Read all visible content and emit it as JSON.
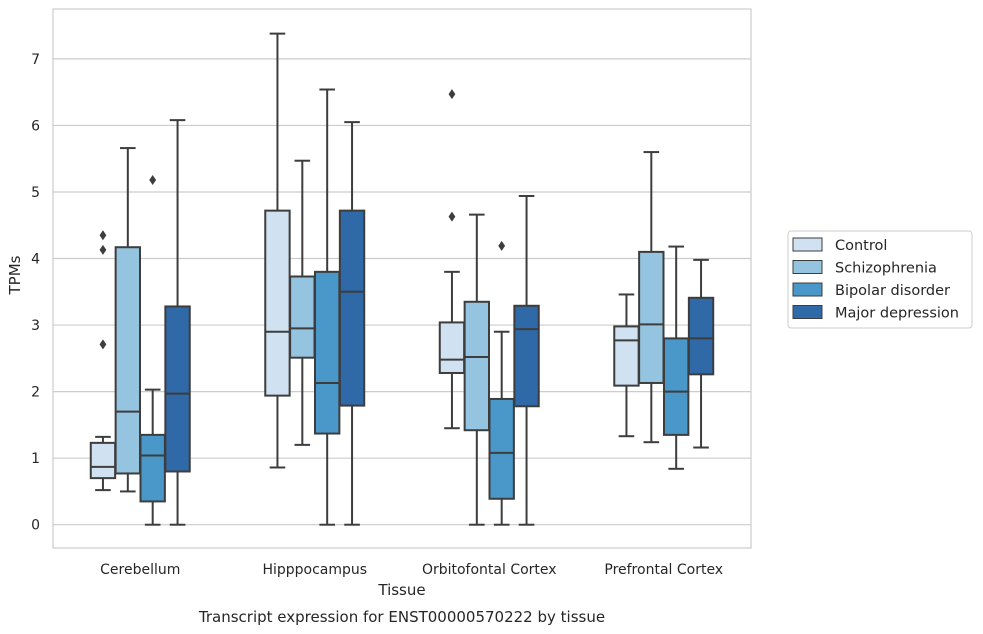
{
  "chart_data": {
    "type": "boxplot",
    "title": "",
    "caption": "Transcript expression for ENST00000570222 by tissue",
    "xlabel": "Tissue",
    "ylabel": "TPMs",
    "ylim": [
      -0.35,
      7.75
    ],
    "yticks": [
      0,
      1,
      2,
      3,
      4,
      5,
      6,
      7
    ],
    "grid": "horizontal",
    "legend_position": "right",
    "categories": [
      "Cerebellum",
      "Hipppocampus",
      "Orbitofontal Cortex",
      "Prefrontal Cortex"
    ],
    "series": [
      {
        "name": "Control",
        "color": "#d0e1f2",
        "boxes": [
          {
            "whislo": 0.52,
            "q1": 0.7,
            "med": 0.87,
            "q3": 1.23,
            "whishi": 1.32,
            "fliers": [
              2.71,
              4.13,
              4.35
            ]
          },
          {
            "whislo": 0.86,
            "q1": 1.94,
            "med": 2.9,
            "q3": 4.72,
            "whishi": 7.38,
            "fliers": []
          },
          {
            "whislo": 1.45,
            "q1": 2.28,
            "med": 2.48,
            "q3": 3.04,
            "whishi": 3.8,
            "fliers": [
              4.63,
              6.47
            ]
          },
          {
            "whislo": 1.33,
            "q1": 2.09,
            "med": 2.77,
            "q3": 2.98,
            "whishi": 3.46,
            "fliers": []
          }
        ]
      },
      {
        "name": "Schizophrenia",
        "color": "#94c4df",
        "boxes": [
          {
            "whislo": 0.5,
            "q1": 0.77,
            "med": 1.7,
            "q3": 4.17,
            "whishi": 5.66,
            "fliers": []
          },
          {
            "whislo": 1.2,
            "q1": 2.51,
            "med": 2.95,
            "q3": 3.73,
            "whishi": 5.47,
            "fliers": []
          },
          {
            "whislo": 0.0,
            "q1": 1.42,
            "med": 2.52,
            "q3": 3.35,
            "whishi": 4.66,
            "fliers": []
          },
          {
            "whislo": 1.24,
            "q1": 2.13,
            "med": 3.01,
            "q3": 4.1,
            "whishi": 5.6,
            "fliers": []
          }
        ]
      },
      {
        "name": "Bipolar disorder",
        "color": "#4a98c9",
        "boxes": [
          {
            "whislo": 0.0,
            "q1": 0.35,
            "med": 1.04,
            "q3": 1.35,
            "whishi": 2.03,
            "fliers": [
              5.18
            ]
          },
          {
            "whislo": 0.0,
            "q1": 1.37,
            "med": 2.13,
            "q3": 3.8,
            "whishi": 6.54,
            "fliers": []
          },
          {
            "whislo": 0.0,
            "q1": 0.39,
            "med": 1.08,
            "q3": 1.89,
            "whishi": 2.9,
            "fliers": [
              4.19
            ]
          },
          {
            "whislo": 0.84,
            "q1": 1.35,
            "med": 2.0,
            "q3": 2.8,
            "whishi": 4.18,
            "fliers": []
          }
        ]
      },
      {
        "name": "Major depression",
        "color": "#2f69a8",
        "boxes": [
          {
            "whislo": 0.0,
            "q1": 0.8,
            "med": 1.97,
            "q3": 3.28,
            "whishi": 6.08,
            "fliers": []
          },
          {
            "whislo": 0.0,
            "q1": 1.79,
            "med": 3.5,
            "q3": 4.72,
            "whishi": 6.05,
            "fliers": []
          },
          {
            "whislo": 0.0,
            "q1": 1.78,
            "med": 2.94,
            "q3": 3.29,
            "whishi": 4.94,
            "fliers": []
          },
          {
            "whislo": 1.16,
            "q1": 2.26,
            "med": 2.8,
            "q3": 3.41,
            "whishi": 3.98,
            "fliers": []
          }
        ]
      }
    ]
  }
}
